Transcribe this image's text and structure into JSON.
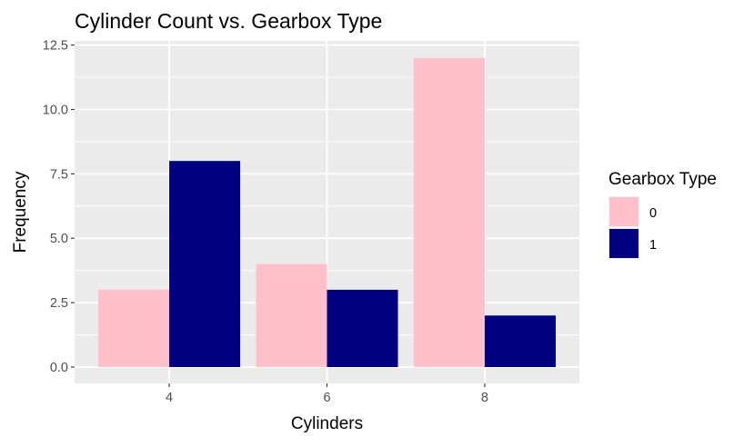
{
  "chart_data": {
    "type": "bar",
    "title": "Cylinder Count vs. Gearbox Type",
    "xlabel": "Cylinders",
    "ylabel": "Frequency",
    "categories": [
      "4",
      "6",
      "8"
    ],
    "series": [
      {
        "name": "0",
        "values": [
          3,
          4,
          12
        ],
        "color": "#FFC0CB"
      },
      {
        "name": "1",
        "values": [
          8,
          3,
          2
        ],
        "color": "#000080"
      }
    ],
    "ylim": [
      0,
      12.5
    ],
    "yticks": [
      "0.0",
      "2.5",
      "5.0",
      "7.5",
      "10.0",
      "12.5"
    ],
    "grid": true,
    "legend": {
      "title": "Gearbox Type",
      "placement": "right"
    },
    "panel_background": "#EBEBEB",
    "grid_color": "#FFFFFF"
  }
}
